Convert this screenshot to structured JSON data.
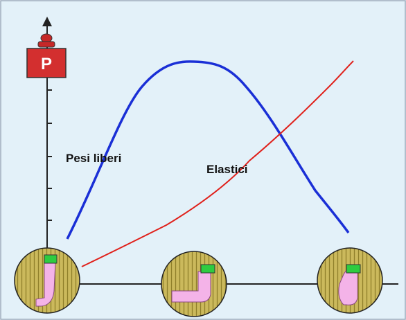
{
  "weight_label": "P",
  "curves": {
    "free_weights": "Pesi liberi",
    "elastics": "Elastici"
  }
}
